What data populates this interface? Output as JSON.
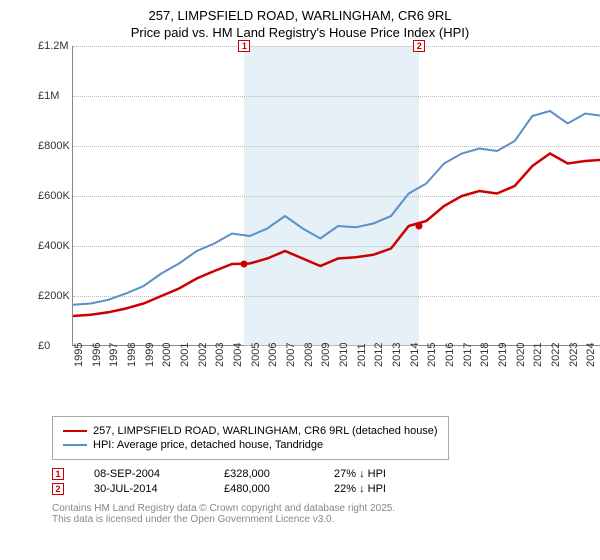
{
  "title": "257, LIMPSFIELD ROAD, WARLINGHAM, CR6 9RL",
  "subtitle": "Price paid vs. HM Land Registry's House Price Index (HPI)",
  "chart": {
    "type": "line",
    "background_color": "#ffffff",
    "grid_color": "#bbbbbb",
    "shade_color": "#d0e4f0",
    "xlim": [
      1995,
      2025
    ],
    "ylim": [
      0,
      1200000
    ],
    "ytick_step": 200000,
    "yticks": [
      "£0",
      "£200K",
      "£400K",
      "£600K",
      "£800K",
      "£1M",
      "£1.2M"
    ],
    "xticks": [
      "1995",
      "1996",
      "1997",
      "1998",
      "1999",
      "2000",
      "2001",
      "2002",
      "2003",
      "2004",
      "2005",
      "2006",
      "2007",
      "2008",
      "2009",
      "2010",
      "2011",
      "2012",
      "2013",
      "2014",
      "2015",
      "2016",
      "2017",
      "2018",
      "2019",
      "2020",
      "2021",
      "2022",
      "2023",
      "2024"
    ],
    "series": [
      {
        "name": "price_paid",
        "label": "257, LIMPSFIELD ROAD, WARLINGHAM, CR6 9RL (detached house)",
        "color": "#cc0000",
        "line_width": 2.5,
        "x": [
          1995,
          1996,
          1997,
          1998,
          1999,
          2000,
          2001,
          2002,
          2003,
          2004,
          2005,
          2006,
          2007,
          2008,
          2009,
          2010,
          2011,
          2012,
          2013,
          2014,
          2015,
          2016,
          2017,
          2018,
          2019,
          2020,
          2021,
          2022,
          2023,
          2024,
          2025
        ],
        "y": [
          120000,
          125000,
          135000,
          150000,
          170000,
          200000,
          230000,
          270000,
          300000,
          328000,
          330000,
          350000,
          380000,
          350000,
          320000,
          350000,
          355000,
          365000,
          390000,
          480000,
          500000,
          560000,
          600000,
          620000,
          610000,
          640000,
          720000,
          770000,
          730000,
          740000,
          745000
        ]
      },
      {
        "name": "hpi",
        "label": "HPI: Average price, detached house, Tandridge",
        "color": "#5b8fc7",
        "line_width": 2,
        "x": [
          1995,
          1996,
          1997,
          1998,
          1999,
          2000,
          2001,
          2002,
          2003,
          2004,
          2005,
          2006,
          2007,
          2008,
          2009,
          2010,
          2011,
          2012,
          2013,
          2014,
          2015,
          2016,
          2017,
          2018,
          2019,
          2020,
          2021,
          2022,
          2023,
          2024,
          2025
        ],
        "y": [
          165000,
          170000,
          185000,
          210000,
          240000,
          290000,
          330000,
          380000,
          410000,
          450000,
          440000,
          470000,
          520000,
          470000,
          430000,
          480000,
          475000,
          490000,
          520000,
          610000,
          650000,
          730000,
          770000,
          790000,
          780000,
          820000,
          920000,
          940000,
          890000,
          930000,
          920000
        ]
      }
    ],
    "shaded_x": [
      2004.7,
      2014.6
    ],
    "markers": [
      {
        "num": "1",
        "x": 2004.7,
        "y": 328000
      },
      {
        "num": "2",
        "x": 2014.6,
        "y": 480000
      }
    ],
    "marker_boxes": [
      {
        "num": "1",
        "x": 2004.7
      },
      {
        "num": "2",
        "x": 2014.6
      }
    ]
  },
  "legend": {
    "series1": "257, LIMPSFIELD ROAD, WARLINGHAM, CR6 9RL (detached house)",
    "series2": "HPI: Average price, detached house, Tandridge"
  },
  "transactions": [
    {
      "num": "1",
      "date": "08-SEP-2004",
      "price": "£328,000",
      "diff": "27% ↓ HPI"
    },
    {
      "num": "2",
      "date": "30-JUL-2014",
      "price": "£480,000",
      "diff": "22% ↓ HPI"
    }
  ],
  "footer": {
    "line1": "Contains HM Land Registry data © Crown copyright and database right 2025.",
    "line2": "This data is licensed under the Open Government Licence v3.0."
  }
}
